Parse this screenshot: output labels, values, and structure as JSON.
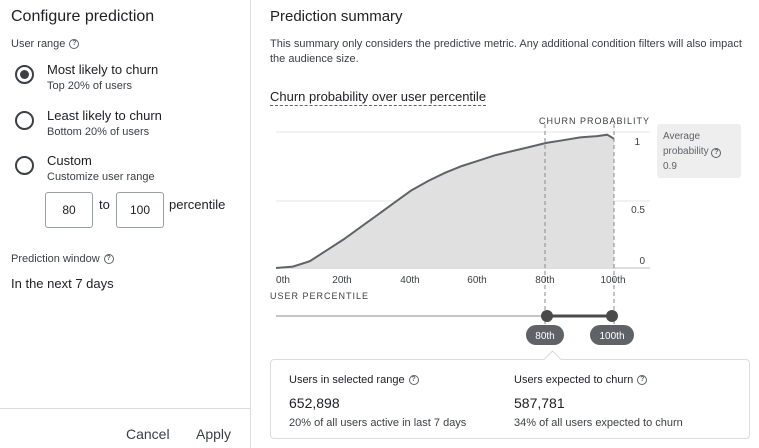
{
  "left": {
    "title": "Configure prediction",
    "user_range_label": "User range",
    "options": [
      {
        "label": "Most likely to churn",
        "sub": "Top 20% of users",
        "checked": true
      },
      {
        "label": "Least likely to churn",
        "sub": "Bottom 20% of users",
        "checked": false
      },
      {
        "label": "Custom",
        "sub": "Customize user range",
        "checked": false
      }
    ],
    "custom_from": "80",
    "custom_to": "100",
    "to_label": "to",
    "percentile_label": "percentile",
    "prediction_window_label": "Prediction window",
    "prediction_window_value": "In the next 7 days",
    "cancel_label": "Cancel",
    "apply_label": "Apply"
  },
  "right": {
    "title": "Prediction summary",
    "description": "This summary only considers the predictive metric. Any additional condition filters will also impact the audience size.",
    "chart_title": "Churn probability over user percentile",
    "avg_label": "Average probability",
    "avg_value": "0.9",
    "stats": {
      "selected_label": "Users in selected range",
      "selected_value": "652,898",
      "selected_note": "20% of all users active in last 7 days",
      "expected_label": "Users expected to churn",
      "expected_value": "587,781",
      "expected_note": "34% of all users expected to churn"
    }
  },
  "colors": {
    "area_fill": "#e0e0e0",
    "line": "#5f6368",
    "handle": "#4a4a4a"
  },
  "chart_data": {
    "type": "area",
    "title": "Churn probability over user percentile",
    "xlabel": "USER PERCENTILE",
    "ylabel": "CHURN PROBABILITY",
    "x_ticks": [
      "0th",
      "20th",
      "40th",
      "60th",
      "80th",
      "100th"
    ],
    "y_ticks": [
      "0",
      "0.5",
      "1"
    ],
    "xlim": [
      0,
      100
    ],
    "ylim": [
      0,
      1
    ],
    "x": [
      0,
      5,
      10,
      15,
      20,
      25,
      30,
      35,
      40,
      45,
      50,
      55,
      60,
      65,
      70,
      75,
      80,
      85,
      90,
      95,
      98,
      100
    ],
    "y": [
      0,
      0.01,
      0.05,
      0.13,
      0.21,
      0.3,
      0.39,
      0.48,
      0.57,
      0.64,
      0.7,
      0.75,
      0.79,
      0.83,
      0.86,
      0.89,
      0.92,
      0.94,
      0.96,
      0.97,
      0.98,
      0.95
    ],
    "selection": {
      "from": 80,
      "to": 100,
      "from_label": "80th",
      "to_label": "100th"
    }
  }
}
